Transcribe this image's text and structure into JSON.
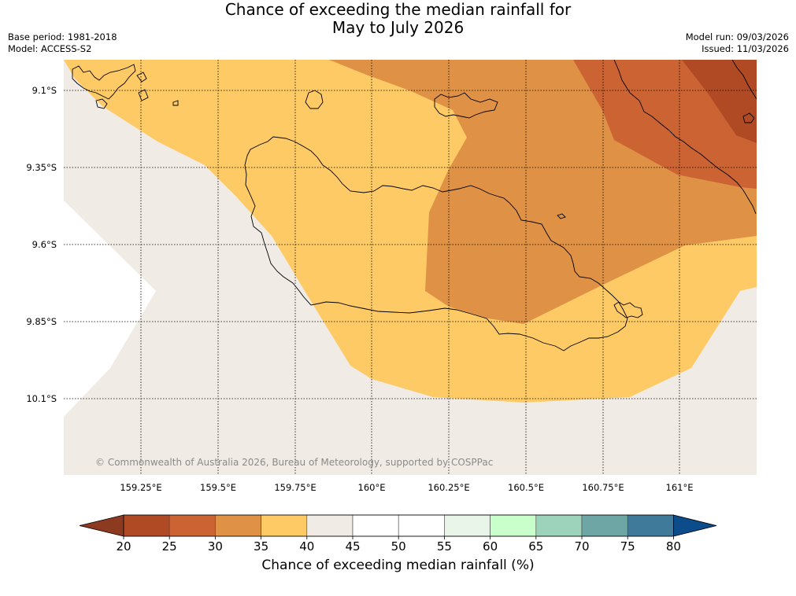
{
  "title": {
    "line1": "Chance of exceeding the median rainfall for",
    "line2": "May to July 2026"
  },
  "meta": {
    "base_period": "Base period: 1981-2018",
    "model": "Model: ACCESS-S2",
    "model_run": "Model run: 09/03/2026",
    "issued": "Issued: 11/03/2026"
  },
  "map": {
    "lat_labels": [
      "9.1°S",
      "9.35°S",
      "9.6°S",
      "9.85°S",
      "10.1°S"
    ],
    "lon_labels": [
      "159.25°E",
      "159.5°E",
      "159.75°E",
      "160°E",
      "160.25°E",
      "160.5°E",
      "160.75°E",
      "161°E"
    ],
    "copyright": "© Commonwealth of Australia 2026, Bureau of Meteorology, supported by COSPPac"
  },
  "colorbar": {
    "ticks": [
      "20",
      "25",
      "30",
      "35",
      "40",
      "45",
      "50",
      "55",
      "60",
      "65",
      "70",
      "75",
      "80"
    ],
    "colors": [
      "#b04a25",
      "#cb6333",
      "#df9145",
      "#fdca65",
      "#f0ebe5",
      "#ffffff",
      "#ffffff",
      "#e9f5e9",
      "#c9ffca",
      "#9dd3bb",
      "#6ea6a5",
      "#3f7a9b"
    ],
    "under_color": "#8c3a20",
    "over_color": "#0d4c8a",
    "label": "Chance of exceeding median rainfall (%)"
  }
}
